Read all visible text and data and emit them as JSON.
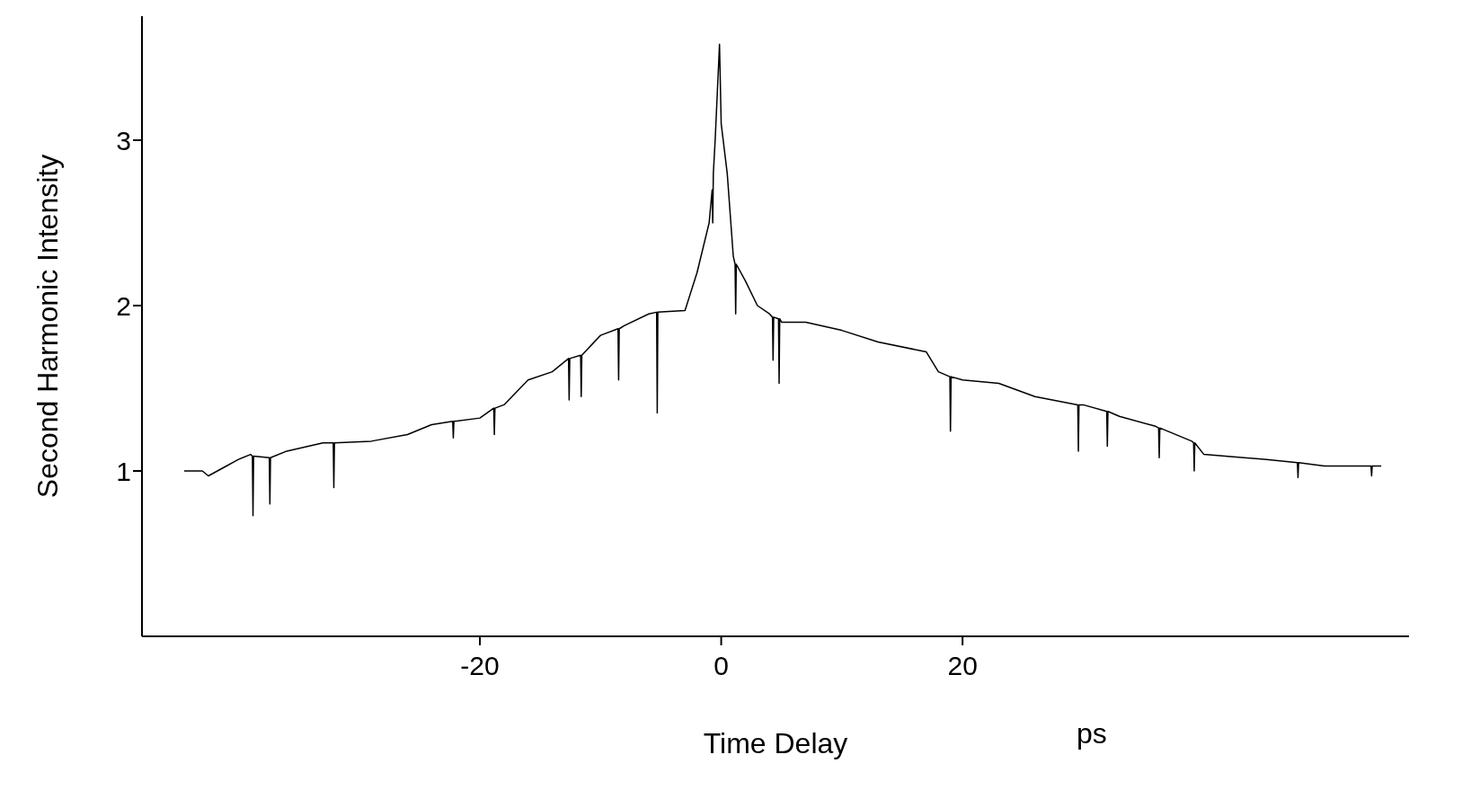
{
  "chart_data": {
    "type": "line",
    "xlabel": "Time Delay",
    "ylabel": "Second Harmonic Intensity",
    "annotations": [
      "ps"
    ],
    "xlim": [
      -48,
      57
    ],
    "ylim": [
      0,
      3.75
    ],
    "xticks": [
      -20,
      0,
      20
    ],
    "yticks": [
      1,
      2,
      3
    ],
    "marker": "none",
    "line_style": "solid",
    "series": [
      {
        "color": "#000000",
        "x": [
          -44.5,
          -43,
          -42.5,
          -41,
          -40,
          -39,
          -38.85,
          -38.8,
          -38.75,
          -37.45,
          -37.4,
          -37.35,
          -36,
          -33,
          -32.15,
          -32.1,
          -32.05,
          -29,
          -26,
          -24,
          -22.25,
          -22.2,
          -22.15,
          -20,
          -18.85,
          -18.8,
          -18.75,
          -18,
          -16,
          -14,
          -12.65,
          -12.6,
          -12.55,
          -11.65,
          -11.6,
          -11.55,
          -10,
          -8.55,
          -8.5,
          -8.45,
          -8,
          -6,
          -5.35,
          -5.3,
          -5.25,
          -3,
          -2,
          -1,
          -0.75,
          -0.7,
          -0.65,
          -0.5,
          -0.14,
          0,
          0.5,
          1,
          1.15,
          1.2,
          1.25,
          2,
          3,
          4,
          4.25,
          4.3,
          4.35,
          4.75,
          4.8,
          4.85,
          5,
          7,
          10,
          13,
          17,
          18,
          18.95,
          19,
          19.05,
          20,
          23,
          26,
          29.55,
          29.6,
          29.65,
          30,
          31.95,
          32,
          32.05,
          33,
          36,
          36.25,
          36.3,
          36.35,
          39,
          39.15,
          39.2,
          39.25,
          40,
          45,
          47.75,
          47.8,
          47.85,
          50,
          53.85,
          53.9,
          53.95,
          54.7
        ],
        "values": [
          1.0,
          1.0,
          0.97,
          1.03,
          1.07,
          1.1,
          1.09,
          0.73,
          1.09,
          1.08,
          0.8,
          1.08,
          1.12,
          1.17,
          1.17,
          0.9,
          1.17,
          1.18,
          1.22,
          1.28,
          1.3,
          1.2,
          1.3,
          1.32,
          1.38,
          1.22,
          1.38,
          1.4,
          1.55,
          1.6,
          1.68,
          1.43,
          1.68,
          1.7,
          1.45,
          1.7,
          1.82,
          1.86,
          1.55,
          1.86,
          1.88,
          1.95,
          1.96,
          1.35,
          1.96,
          1.97,
          2.2,
          2.5,
          2.7,
          2.5,
          2.8,
          3.0,
          3.58,
          3.1,
          2.8,
          2.3,
          2.25,
          1.95,
          2.25,
          2.15,
          2.0,
          1.95,
          1.93,
          1.67,
          1.93,
          1.92,
          1.53,
          1.92,
          1.9,
          1.9,
          1.85,
          1.78,
          1.72,
          1.6,
          1.57,
          1.24,
          1.57,
          1.55,
          1.53,
          1.45,
          1.4,
          1.12,
          1.4,
          1.4,
          1.36,
          1.15,
          1.36,
          1.33,
          1.27,
          1.26,
          1.08,
          1.26,
          1.18,
          1.17,
          1.0,
          1.17,
          1.1,
          1.07,
          1.05,
          0.96,
          1.05,
          1.03,
          1.03,
          0.97,
          1.03,
          1.03
        ]
      }
    ]
  }
}
